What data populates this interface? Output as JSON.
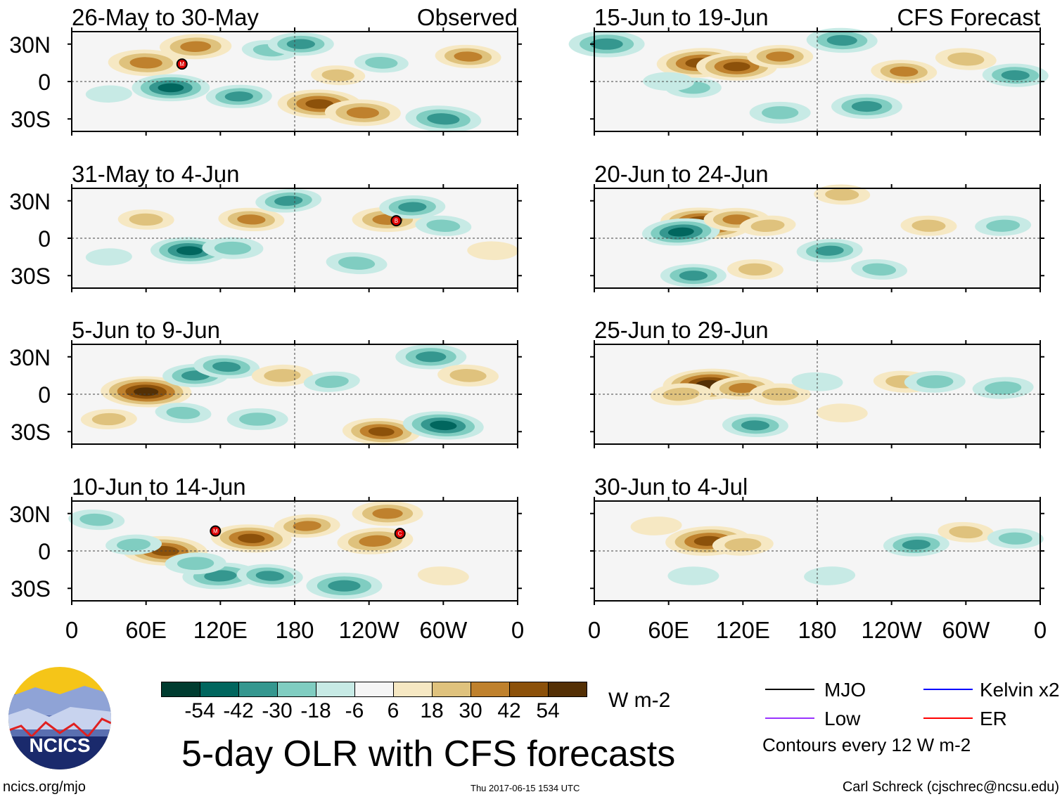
{
  "title": "5-day OLR with CFS forecasts",
  "units": "W m-2",
  "column_labels": {
    "observed": "Observed",
    "forecast": "CFS Forecast"
  },
  "lat_labels": [
    "30N",
    "0",
    "30S"
  ],
  "lon_labels": [
    "0",
    "60E",
    "120E",
    "180",
    "120W",
    "60W",
    "0"
  ],
  "colorbar": {
    "colors": [
      "#003c30",
      "#01665e",
      "#35978f",
      "#80cdc1",
      "#c7eae5",
      "#f5f5f5",
      "#f6e8c3",
      "#dfc27d",
      "#bf812d",
      "#8c510a",
      "#543005"
    ],
    "labels": [
      "-54",
      "-42",
      "-30",
      "-18",
      "-6",
      "6",
      "18",
      "30",
      "42",
      "54"
    ]
  },
  "legend": {
    "items": [
      {
        "label": "MJO",
        "color": "#000000"
      },
      {
        "label": "Kelvin x2",
        "color": "#0000ff"
      },
      {
        "label": "Low",
        "color": "#9933ff"
      },
      {
        "label": "ER",
        "color": "#ff0000"
      }
    ],
    "note": "Contours every 12 W m-2"
  },
  "logo_text": "NCICS",
  "footer": {
    "left": "ncics.org/mjo",
    "center": "Thu 2017-06-15 1534 UTC",
    "right": "Carl Schreck (cjschrec@ncsu.edu)"
  },
  "panels": [
    {
      "label": "26-May to 30-May",
      "type": "observed",
      "storms": [
        {
          "letter": "M",
          "lon": 89,
          "lat": 14
        }
      ],
      "anoms": [
        [
          60,
          15,
          40
        ],
        [
          100,
          28,
          36
        ],
        [
          135,
          -12,
          -30
        ],
        [
          200,
          -18,
          48
        ],
        [
          235,
          -25,
          40
        ],
        [
          300,
          -30,
          -40
        ],
        [
          80,
          -5,
          -42
        ],
        [
          160,
          25,
          -20
        ],
        [
          215,
          5,
          18
        ],
        [
          250,
          15,
          -18
        ],
        [
          320,
          20,
          30
        ],
        [
          30,
          -10,
          -10
        ],
        [
          185,
          30,
          -30
        ]
      ]
    },
    {
      "label": "15-Jun to 19-Jun",
      "type": "forecast",
      "storms": [],
      "anoms": [
        [
          85,
          15,
          50
        ],
        [
          115,
          12,
          45
        ],
        [
          150,
          20,
          30
        ],
        [
          200,
          33,
          -35
        ],
        [
          220,
          -20,
          -35
        ],
        [
          150,
          -25,
          -25
        ],
        [
          80,
          -5,
          -20
        ],
        [
          250,
          8,
          30
        ],
        [
          300,
          18,
          25
        ],
        [
          340,
          5,
          -30
        ],
        [
          10,
          30,
          -40
        ],
        [
          60,
          0,
          -15
        ]
      ]
    },
    {
      "label": "31-May to 4-Jun",
      "type": "observed",
      "storms": [
        {
          "letter": "B",
          "lon": 262,
          "lat": 14
        }
      ],
      "anoms": [
        [
          95,
          -10,
          -42
        ],
        [
          130,
          -8,
          -25
        ],
        [
          145,
          15,
          30
        ],
        [
          175,
          30,
          -30
        ],
        [
          230,
          -20,
          -25
        ],
        [
          255,
          15,
          35
        ],
        [
          275,
          25,
          -30
        ],
        [
          300,
          10,
          -20
        ],
        [
          30,
          -15,
          -10
        ],
        [
          60,
          15,
          20
        ],
        [
          340,
          -10,
          15
        ]
      ]
    },
    {
      "label": "20-Jun to 24-Jun",
      "type": "forecast",
      "storms": [],
      "anoms": [
        [
          90,
          12,
          55
        ],
        [
          70,
          5,
          -42
        ],
        [
          115,
          15,
          30
        ],
        [
          140,
          10,
          20
        ],
        [
          190,
          -10,
          -30
        ],
        [
          230,
          -25,
          -20
        ],
        [
          80,
          -30,
          -30
        ],
        [
          130,
          -25,
          20
        ],
        [
          270,
          10,
          20
        ],
        [
          330,
          10,
          -20
        ],
        [
          200,
          35,
          20
        ]
      ]
    },
    {
      "label": "5-Jun to 9-Jun",
      "type": "observed",
      "storms": [],
      "anoms": [
        [
          60,
          2,
          55
        ],
        [
          100,
          15,
          -30
        ],
        [
          125,
          22,
          -30
        ],
        [
          150,
          -20,
          -25
        ],
        [
          170,
          15,
          25
        ],
        [
          250,
          -30,
          42
        ],
        [
          300,
          -25,
          -45
        ],
        [
          290,
          30,
          -35
        ],
        [
          320,
          15,
          25
        ],
        [
          30,
          -20,
          20
        ],
        [
          210,
          10,
          -20
        ],
        [
          90,
          -15,
          -20
        ]
      ]
    },
    {
      "label": "25-Jun to 29-Jun",
      "type": "forecast",
      "storms": [],
      "anoms": [
        [
          92,
          8,
          55
        ],
        [
          70,
          0,
          25
        ],
        [
          120,
          5,
          30
        ],
        [
          150,
          0,
          25
        ],
        [
          130,
          -25,
          -30
        ],
        [
          250,
          10,
          25
        ],
        [
          275,
          10,
          -25
        ],
        [
          330,
          5,
          -25
        ],
        [
          200,
          -15,
          15
        ],
        [
          180,
          10,
          -15
        ]
      ]
    },
    {
      "label": "10-Jun to 14-Jun",
      "type": "observed",
      "storms": [
        {
          "letter": "M",
          "lon": 116,
          "lat": 16
        },
        {
          "letter": "C",
          "lon": 265,
          "lat": 14
        }
      ],
      "anoms": [
        [
          75,
          0,
          50
        ],
        [
          145,
          10,
          45
        ],
        [
          190,
          20,
          30
        ],
        [
          245,
          8,
          40
        ],
        [
          255,
          30,
          35
        ],
        [
          120,
          -20,
          -40
        ],
        [
          160,
          -20,
          -30
        ],
        [
          220,
          -28,
          -40
        ],
        [
          50,
          5,
          -20
        ],
        [
          100,
          -10,
          -25
        ],
        [
          20,
          25,
          -20
        ],
        [
          300,
          -20,
          15
        ]
      ]
    },
    {
      "label": "30-Jun to 4-Jul",
      "type": "forecast",
      "storms": [],
      "anoms": [
        [
          92,
          8,
          50
        ],
        [
          120,
          5,
          25
        ],
        [
          260,
          5,
          -30
        ],
        [
          300,
          15,
          20
        ],
        [
          340,
          10,
          -20
        ],
        [
          80,
          -20,
          -15
        ],
        [
          190,
          -20,
          -15
        ],
        [
          50,
          20,
          15
        ]
      ]
    }
  ]
}
